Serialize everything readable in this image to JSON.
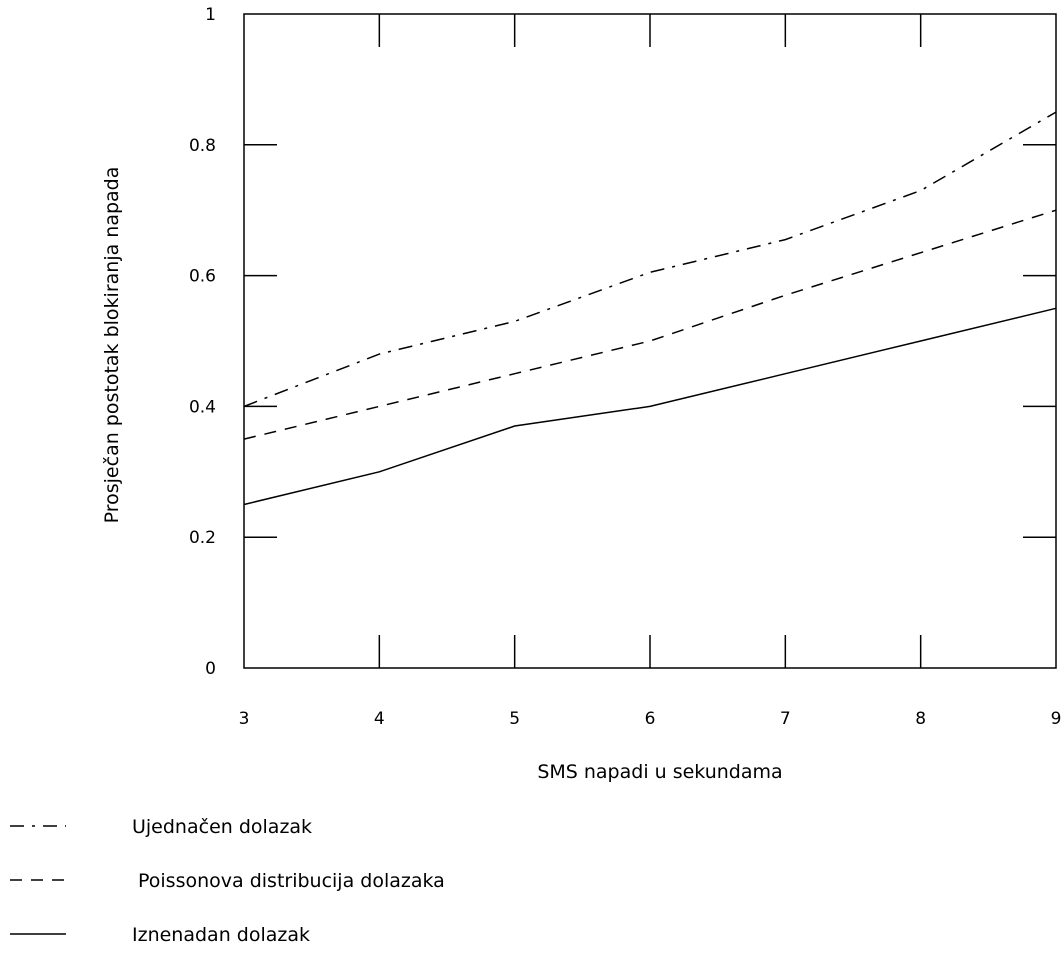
{
  "chart_data": {
    "type": "line",
    "title": "",
    "xlabel": "SMS napadi u sekundama",
    "ylabel": "Prosječan postotak blokiranja napada",
    "x": [
      3,
      4,
      5,
      6,
      7,
      8,
      9
    ],
    "xlim": [
      3,
      9
    ],
    "ylim": [
      0,
      1
    ],
    "x_ticks": [
      "3",
      "4",
      "5",
      "6",
      "7",
      "8",
      "9"
    ],
    "y_ticks": [
      "0",
      "0.2",
      "0.4",
      "0.6",
      "0.8",
      "1"
    ],
    "grid": false,
    "legend_position": "bottom-left",
    "series": [
      {
        "name": "Ujednačen dolazak",
        "style": "dash-dot",
        "color": "#000000",
        "values": [
          0.4,
          0.48,
          0.53,
          0.605,
          0.655,
          0.73,
          0.85
        ]
      },
      {
        "name": "Poissonova distribucija dolazaka",
        "style": "dashed",
        "color": "#000000",
        "values": [
          0.35,
          0.4,
          0.45,
          0.5,
          0.57,
          0.635,
          0.7
        ]
      },
      {
        "name": "Iznenadan dolazak",
        "style": "solid",
        "color": "#000000",
        "values": [
          0.25,
          0.3,
          0.37,
          0.4,
          0.45,
          0.5,
          0.55
        ]
      }
    ]
  }
}
